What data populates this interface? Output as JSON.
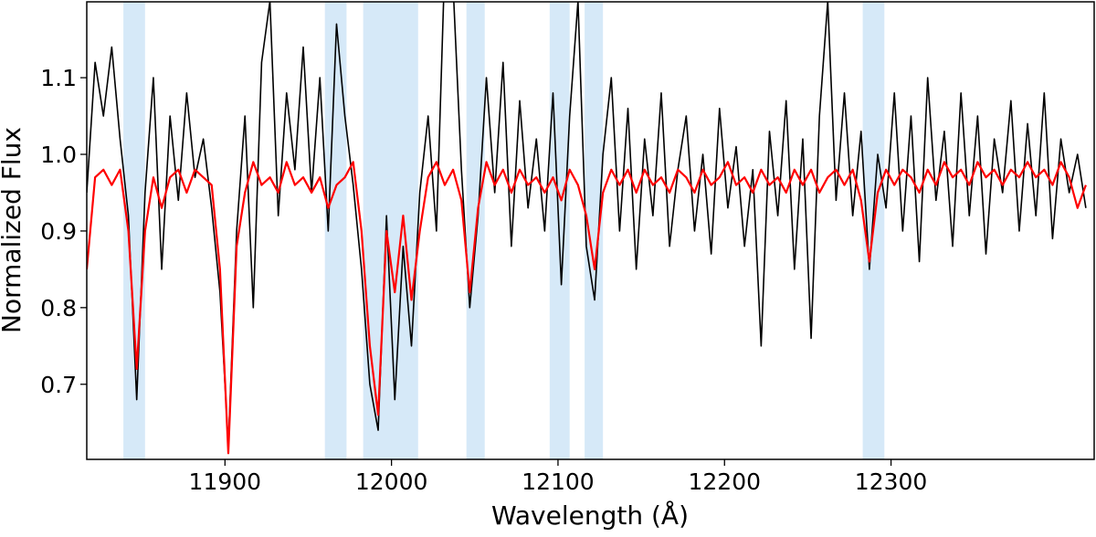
{
  "chart_data": {
    "type": "line",
    "xlabel": "Wavelength (Å)",
    "ylabel": "Normalized Flux",
    "xlim": [
      11817,
      12422
    ],
    "ylim": [
      0.602,
      1.199
    ],
    "xticks": [
      11900,
      12000,
      12100,
      12200,
      12300
    ],
    "yticks": [
      0.7,
      0.8,
      0.9,
      {
        "value": 1,
        "label": "1.0"
      },
      1.1
    ],
    "grid": false,
    "regions": [
      [
        11839,
        11852
      ],
      [
        11960,
        11973
      ],
      [
        11983,
        12016
      ],
      [
        12045,
        12056
      ],
      [
        12095,
        12107
      ],
      [
        12116,
        12127
      ],
      [
        12283,
        12296
      ]
    ],
    "region_color": "#d6e9f8",
    "x": [
      11817,
      11822,
      11827,
      11832,
      11837,
      11842,
      11847,
      11852,
      11857,
      11862,
      11867,
      11872,
      11877,
      11882,
      11887,
      11892,
      11897,
      11902,
      11907,
      11912,
      11917,
      11922,
      11927,
      11932,
      11937,
      11942,
      11947,
      11952,
      11957,
      11962,
      11967,
      11972,
      11977,
      11982,
      11987,
      11992,
      11997,
      12002,
      12007,
      12012,
      12017,
      12022,
      12027,
      12032,
      12037,
      12042,
      12047,
      12052,
      12057,
      12062,
      12067,
      12072,
      12077,
      12082,
      12087,
      12092,
      12097,
      12102,
      12107,
      12112,
      12117,
      12122,
      12127,
      12132,
      12137,
      12142,
      12147,
      12152,
      12157,
      12162,
      12167,
      12172,
      12177,
      12182,
      12187,
      12192,
      12197,
      12202,
      12207,
      12212,
      12217,
      12222,
      12227,
      12232,
      12237,
      12242,
      12247,
      12252,
      12257,
      12262,
      12267,
      12272,
      12277,
      12282,
      12287,
      12292,
      12297,
      12302,
      12307,
      12312,
      12317,
      12322,
      12327,
      12332,
      12337,
      12342,
      12347,
      12352,
      12357,
      12362,
      12367,
      12372,
      12377,
      12382,
      12387,
      12392,
      12397,
      12402,
      12407,
      12412,
      12417
    ],
    "series": [
      {
        "color": "#000000",
        "width": 1.6,
        "values": [
          0.95,
          1.12,
          1.05,
          1.14,
          1.02,
          0.92,
          0.68,
          0.95,
          1.1,
          0.85,
          1.05,
          0.94,
          1.08,
          0.97,
          1.02,
          0.93,
          0.82,
          0.62,
          0.9,
          1.05,
          0.8,
          1.12,
          1.2,
          0.92,
          1.08,
          0.98,
          1.14,
          0.95,
          1.1,
          0.9,
          1.17,
          1.05,
          0.96,
          0.85,
          0.7,
          0.64,
          0.92,
          0.68,
          0.88,
          0.75,
          0.95,
          1.05,
          0.9,
          1.25,
          1.22,
          0.98,
          0.8,
          0.92,
          1.1,
          0.95,
          1.12,
          0.88,
          1.07,
          0.93,
          1.02,
          0.9,
          1.08,
          0.83,
          1.05,
          1.2,
          0.88,
          0.81,
          1.0,
          1.1,
          0.9,
          1.06,
          0.85,
          1.02,
          0.92,
          1.08,
          0.88,
          0.98,
          1.05,
          0.9,
          1.0,
          0.87,
          1.06,
          0.93,
          1.01,
          0.88,
          0.98,
          0.75,
          1.03,
          0.92,
          1.07,
          0.85,
          1.02,
          0.76,
          1.05,
          1.2,
          0.94,
          1.08,
          0.92,
          1.03,
          0.85,
          1.0,
          0.93,
          1.08,
          0.9,
          1.05,
          0.86,
          1.1,
          0.94,
          1.03,
          0.88,
          1.08,
          0.92,
          1.05,
          0.87,
          1.02,
          0.95,
          1.07,
          0.9,
          1.04,
          0.92,
          1.08,
          0.89,
          1.02,
          0.95,
          1.0,
          0.93
        ]
      },
      {
        "color": "#ff0000",
        "width": 2.2,
        "values": [
          0.85,
          0.97,
          0.98,
          0.96,
          0.98,
          0.9,
          0.72,
          0.9,
          0.97,
          0.93,
          0.97,
          0.98,
          0.95,
          0.98,
          0.97,
          0.96,
          0.85,
          0.61,
          0.88,
          0.95,
          0.99,
          0.96,
          0.97,
          0.95,
          0.99,
          0.96,
          0.97,
          0.95,
          0.97,
          0.93,
          0.96,
          0.97,
          0.99,
          0.9,
          0.75,
          0.66,
          0.9,
          0.82,
          0.92,
          0.81,
          0.9,
          0.97,
          0.99,
          0.96,
          0.98,
          0.94,
          0.82,
          0.93,
          0.99,
          0.96,
          0.98,
          0.95,
          0.98,
          0.96,
          0.97,
          0.95,
          0.97,
          0.94,
          0.98,
          0.96,
          0.92,
          0.85,
          0.95,
          0.98,
          0.96,
          0.98,
          0.95,
          0.98,
          0.96,
          0.97,
          0.95,
          0.98,
          0.97,
          0.95,
          0.98,
          0.96,
          0.97,
          0.99,
          0.96,
          0.97,
          0.95,
          0.98,
          0.96,
          0.97,
          0.95,
          0.98,
          0.96,
          0.98,
          0.95,
          0.97,
          0.98,
          0.96,
          0.98,
          0.94,
          0.86,
          0.95,
          0.98,
          0.96,
          0.98,
          0.97,
          0.95,
          0.98,
          0.96,
          0.99,
          0.97,
          0.98,
          0.96,
          0.99,
          0.97,
          0.98,
          0.96,
          0.98,
          0.97,
          0.99,
          0.97,
          0.98,
          0.96,
          0.99,
          0.97,
          0.93,
          0.96
        ]
      }
    ]
  }
}
